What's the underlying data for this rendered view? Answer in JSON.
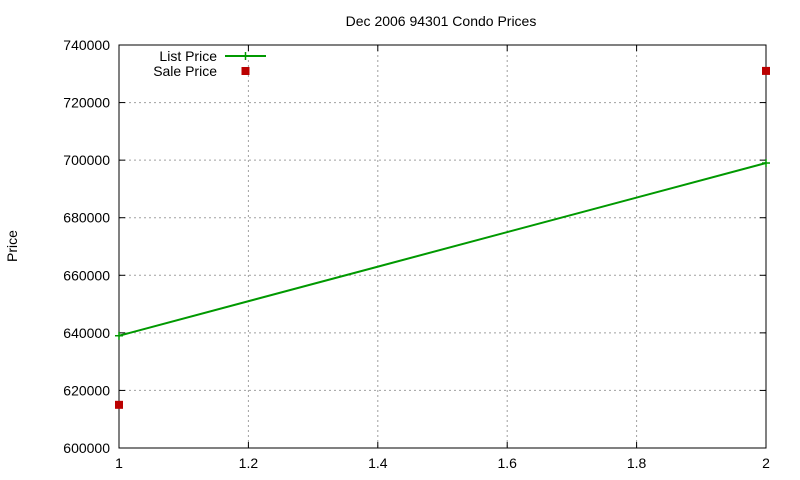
{
  "chart_data": {
    "type": "line",
    "title": "Dec 2006 94301 Condo Prices",
    "xlabel": "",
    "ylabel": "Price",
    "xlim": [
      1,
      2
    ],
    "ylim": [
      600000,
      740000
    ],
    "x_ticks": [
      "1",
      "1.2",
      "1.4",
      "1.6",
      "1.8",
      "2"
    ],
    "x_tick_values": [
      1,
      1.2,
      1.4,
      1.6,
      1.8,
      2
    ],
    "y_ticks": [
      "600000",
      "620000",
      "640000",
      "660000",
      "680000",
      "700000",
      "720000",
      "740000"
    ],
    "y_tick_values": [
      600000,
      620000,
      640000,
      660000,
      680000,
      700000,
      720000,
      740000
    ],
    "grid": true,
    "legend_position": "top-left",
    "series": [
      {
        "name": "List Price",
        "style": "linespoints",
        "marker": "plus",
        "color": "#009900",
        "x": [
          1,
          2
        ],
        "values": [
          639000,
          699000
        ]
      },
      {
        "name": "Sale Price",
        "style": "points",
        "marker": "square",
        "color": "#bb0000",
        "x": [
          1,
          2
        ],
        "values": [
          615000,
          731000
        ]
      }
    ]
  }
}
